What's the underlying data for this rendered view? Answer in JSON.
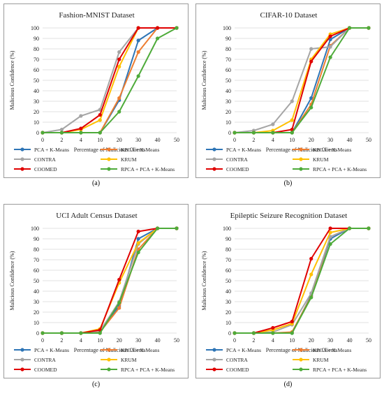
{
  "colors": {
    "PCA + K-Means": "#2e75b6",
    "KPCA + K-Means": "#ed7d31",
    "CONTRA": "#a5a5a5",
    "KRUM": "#ffc000",
    "COOMED": "#e00000",
    "RPCA + PCA + K-Means": "#4eab3a"
  },
  "chart_data": [
    {
      "type": "line",
      "title": "Fashion-MNIST Dataset",
      "xlabel": "Percentage of Malicious Clients",
      "ylabel": "Malicious Confidence (%)",
      "caption": "(a)",
      "categories": [
        "0",
        "2",
        "4",
        "10",
        "20",
        "30",
        "40",
        "50"
      ],
      "yticks": [
        0,
        10,
        20,
        30,
        40,
        50,
        60,
        70,
        80,
        90,
        100
      ],
      "ylim": [
        0,
        100
      ],
      "legend_position": "bottom",
      "series": [
        {
          "name": "PCA + K-Means",
          "values": [
            0,
            0,
            0,
            0,
            31,
            88,
            100,
            100
          ]
        },
        {
          "name": "KPCA + K-Means",
          "values": [
            0,
            0,
            0,
            0,
            33,
            77,
            100,
            100
          ]
        },
        {
          "name": "CONTRA",
          "values": [
            0,
            3,
            16,
            22,
            77,
            100,
            100,
            100
          ]
        },
        {
          "name": "KRUM",
          "values": [
            0,
            0,
            3,
            12,
            63,
            100,
            100,
            100
          ]
        },
        {
          "name": "COOMED",
          "values": [
            0,
            0,
            4,
            17,
            70,
            100,
            100,
            100
          ]
        },
        {
          "name": "RPCA + PCA + K-Means",
          "values": [
            0,
            0,
            0,
            0,
            20,
            54,
            90,
            100
          ]
        }
      ]
    },
    {
      "type": "line",
      "title": "CIFAR-10 Dataset",
      "xlabel": "Percentage of Malicious Clients",
      "ylabel": "Malicious Confidence (%)",
      "caption": "(b)",
      "categories": [
        "0",
        "2",
        "4",
        "10",
        "20",
        "30",
        "40",
        "50"
      ],
      "yticks": [
        0,
        10,
        20,
        30,
        40,
        50,
        60,
        70,
        80,
        90,
        100
      ],
      "ylim": [
        0,
        100
      ],
      "legend_position": "bottom",
      "series": [
        {
          "name": "PCA + K-Means",
          "values": [
            0,
            0,
            0,
            0,
            33,
            89,
            100,
            100
          ]
        },
        {
          "name": "KPCA + K-Means",
          "values": [
            0,
            0,
            0,
            0,
            27,
            83,
            100,
            100
          ]
        },
        {
          "name": "CONTRA",
          "values": [
            0,
            2,
            8,
            30,
            80,
            82,
            100,
            100
          ]
        },
        {
          "name": "KRUM",
          "values": [
            0,
            0,
            2,
            12,
            70,
            94,
            100,
            100
          ]
        },
        {
          "name": "COOMED",
          "values": [
            0,
            0,
            0,
            3,
            68,
            92,
            100,
            100
          ]
        },
        {
          "name": "RPCA + PCA + K-Means",
          "values": [
            0,
            0,
            0,
            0,
            24,
            72,
            100,
            100
          ]
        }
      ]
    },
    {
      "type": "line",
      "title": "UCI Adult Census Dataset",
      "xlabel": "Percentage of Malicious Clients",
      "ylabel": "Malicious Confidence (%)",
      "caption": "(c)",
      "categories": [
        "0",
        "2",
        "4",
        "10",
        "20",
        "30",
        "40",
        "50"
      ],
      "yticks": [
        0,
        10,
        20,
        30,
        40,
        50,
        60,
        70,
        80,
        90,
        100
      ],
      "ylim": [
        0,
        100
      ],
      "legend_position": "bottom",
      "series": [
        {
          "name": "PCA + K-Means",
          "values": [
            0,
            0,
            0,
            2,
            26,
            90,
            100,
            100
          ]
        },
        {
          "name": "KPCA + K-Means",
          "values": [
            0,
            0,
            0,
            1,
            24,
            80,
            100,
            100
          ]
        },
        {
          "name": "CONTRA",
          "values": [
            0,
            0,
            0,
            2,
            30,
            85,
            100,
            100
          ]
        },
        {
          "name": "KRUM",
          "values": [
            0,
            0,
            0,
            4,
            48,
            86,
            100,
            100
          ]
        },
        {
          "name": "COOMED",
          "values": [
            0,
            0,
            0,
            3,
            51,
            97,
            100,
            100
          ]
        },
        {
          "name": "RPCA + PCA + K-Means",
          "values": [
            0,
            0,
            0,
            0,
            29,
            77,
            100,
            100
          ]
        }
      ]
    },
    {
      "type": "line",
      "title": "Epileptic Seizure Recognition Dataset",
      "xlabel": "Percentage of Malicious Clients",
      "ylabel": "Malicious Confidence (%)",
      "caption": "(d)",
      "categories": [
        "0",
        "2",
        "4",
        "10",
        "20",
        "30",
        "40",
        "50"
      ],
      "yticks": [
        0,
        10,
        20,
        30,
        40,
        50,
        60,
        70,
        80,
        90,
        100
      ],
      "ylim": [
        0,
        100
      ],
      "legend_position": "bottom",
      "series": [
        {
          "name": "PCA + K-Means",
          "values": [
            0,
            0,
            0,
            0,
            36,
            90,
            100,
            100
          ]
        },
        {
          "name": "KPCA + K-Means",
          "values": [
            0,
            0,
            0,
            1,
            35,
            92,
            100,
            100
          ]
        },
        {
          "name": "CONTRA",
          "values": [
            0,
            0,
            1,
            8,
            38,
            92,
            100,
            100
          ]
        },
        {
          "name": "KRUM",
          "values": [
            0,
            0,
            3,
            9,
            56,
            96,
            100,
            100
          ]
        },
        {
          "name": "COOMED",
          "values": [
            0,
            0,
            5,
            11,
            71,
            100,
            100,
            100
          ]
        },
        {
          "name": "RPCA + PCA + K-Means",
          "values": [
            0,
            0,
            0,
            0,
            34,
            85,
            100,
            100
          ]
        }
      ]
    }
  ]
}
